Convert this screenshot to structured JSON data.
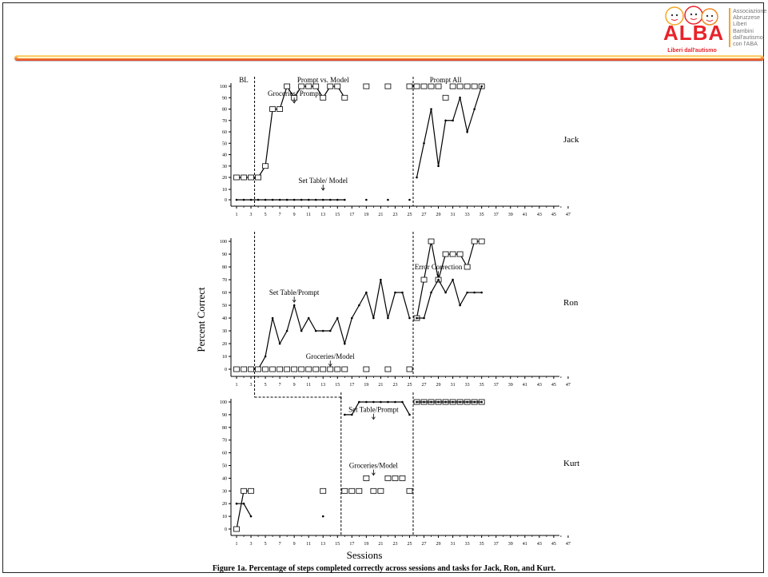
{
  "logo": {
    "brand": "ALBA",
    "tagline": "Liberi dall'autismo",
    "side_text": [
      "Associazione",
      "Abruzzese",
      "Liberi",
      "Bambini",
      "dall'autismo",
      "con l'ABA"
    ]
  },
  "caption": "Figure 1a. Percentage of steps completed correctly across sessions and tasks for Jack, Ron, and Kurt.",
  "colors": {
    "accent_orange": "#f6a13a",
    "accent_red": "#e23b2a",
    "data_ink": "#000000"
  },
  "chart_data": {
    "type": "line",
    "xlabel": "Sessions",
    "ylabel": "Percent Correct",
    "x_tick_labels": [
      1,
      3,
      5,
      7,
      9,
      11,
      13,
      15,
      17,
      19,
      21,
      23,
      25,
      27,
      29,
      31,
      33,
      35,
      37,
      39,
      41,
      43,
      45,
      47
    ],
    "xlim": [
      1,
      47
    ],
    "ylim": [
      0,
      100
    ],
    "panels": [
      {
        "name": "Jack",
        "y_ticks": [
          0,
          10,
          20,
          30,
          40,
          50,
          60,
          70,
          80,
          90,
          100
        ],
        "phase_labels": [
          {
            "label": "BL",
            "x": 2
          },
          {
            "label": "Prompt vs. Model",
            "x": 13
          },
          {
            "label": "Prompt All",
            "x": 30
          }
        ],
        "phase_lines_x": [
          3.5,
          25.5
        ],
        "annotations": [
          {
            "text": "Groceries/ Prompt",
            "x": 9,
            "y": 86,
            "arrow": true
          },
          {
            "text": "Set Table/ Model",
            "x": 13,
            "y": 3,
            "arrow": true
          }
        ],
        "series": [
          {
            "name": "Groceries",
            "marker": "square",
            "line": true,
            "points": [
              [
                1,
                20
              ],
              [
                2,
                20
              ],
              [
                3,
                20
              ],
              [
                4,
                20
              ],
              [
                5,
                30
              ],
              [
                6,
                80
              ],
              [
                7,
                80
              ],
              [
                8,
                100
              ],
              [
                9,
                90
              ],
              [
                10,
                100
              ],
              [
                11,
                100
              ],
              [
                12,
                100
              ],
              [
                13,
                90
              ],
              [
                14,
                100
              ],
              [
                15,
                100
              ],
              [
                16,
                90
              ]
            ]
          },
          {
            "name": "Groceries",
            "marker": "square",
            "line": false,
            "points": [
              [
                19,
                100
              ],
              [
                22,
                100
              ],
              [
                25,
                100
              ],
              [
                26,
                100
              ],
              [
                27,
                100
              ],
              [
                28,
                100
              ],
              [
                29,
                100
              ],
              [
                30,
                90
              ],
              [
                31,
                100
              ],
              [
                32,
                100
              ],
              [
                33,
                100
              ],
              [
                34,
                100
              ],
              [
                35,
                100
              ]
            ]
          },
          {
            "name": "Set Table",
            "marker": "dot",
            "line": true,
            "points": [
              [
                1,
                0
              ],
              [
                2,
                0
              ],
              [
                3,
                0
              ],
              [
                4,
                0
              ],
              [
                5,
                0
              ],
              [
                6,
                0
              ],
              [
                7,
                0
              ],
              [
                8,
                0
              ],
              [
                9,
                0
              ],
              [
                10,
                0
              ],
              [
                11,
                0
              ],
              [
                12,
                0
              ],
              [
                13,
                0
              ],
              [
                14,
                0
              ],
              [
                15,
                0
              ],
              [
                16,
                0
              ]
            ]
          },
          {
            "name": "Set Table",
            "marker": "dot",
            "line": false,
            "points": [
              [
                19,
                0
              ],
              [
                22,
                0
              ],
              [
                25,
                0
              ]
            ]
          },
          {
            "name": "Set Table",
            "marker": "dot",
            "line": true,
            "points": [
              [
                26,
                20
              ],
              [
                27,
                50
              ],
              [
                28,
                80
              ],
              [
                29,
                30
              ],
              [
                30,
                70
              ],
              [
                31,
                70
              ],
              [
                32,
                90
              ],
              [
                33,
                60
              ],
              [
                34,
                80
              ],
              [
                35,
                100
              ]
            ]
          }
        ]
      },
      {
        "name": "Ron",
        "y_ticks": [
          0,
          10,
          20,
          30,
          40,
          50,
          60,
          70,
          80,
          90,
          100
        ],
        "phase_lines_x": [
          3.5,
          25.5
        ],
        "annotations": [
          {
            "text": "Set Table/Prompt",
            "x": 9,
            "y": 53,
            "arrow": true
          },
          {
            "text": "Groceries/Model",
            "x": 14,
            "y": 3,
            "arrow": true
          },
          {
            "text": "Error Correction",
            "x": 29,
            "y": 73,
            "arrow": true
          }
        ],
        "series": [
          {
            "name": "Set Table",
            "marker": "dot",
            "line": true,
            "points": [
              [
                4,
                0
              ],
              [
                5,
                10
              ],
              [
                6,
                40
              ],
              [
                7,
                20
              ],
              [
                8,
                30
              ],
              [
                9,
                50
              ],
              [
                10,
                30
              ],
              [
                11,
                40
              ],
              [
                12,
                30
              ],
              [
                13,
                30
              ],
              [
                14,
                30
              ],
              [
                15,
                40
              ],
              [
                16,
                20
              ],
              [
                17,
                40
              ],
              [
                18,
                50
              ],
              [
                19,
                60
              ],
              [
                20,
                40
              ],
              [
                21,
                70
              ],
              [
                22,
                40
              ],
              [
                23,
                60
              ],
              [
                24,
                60
              ],
              [
                25,
                40
              ]
            ]
          },
          {
            "name": "Groceries",
            "marker": "square",
            "line": false,
            "points": [
              [
                1,
                0
              ],
              [
                2,
                0
              ],
              [
                3,
                0
              ],
              [
                4,
                0
              ],
              [
                5,
                0
              ],
              [
                6,
                0
              ],
              [
                7,
                0
              ],
              [
                8,
                0
              ],
              [
                9,
                0
              ],
              [
                10,
                0
              ],
              [
                11,
                0
              ],
              [
                12,
                0
              ],
              [
                13,
                0
              ],
              [
                14,
                0
              ],
              [
                15,
                0
              ],
              [
                16,
                0
              ],
              [
                19,
                0
              ],
              [
                22,
                0
              ],
              [
                25,
                0
              ]
            ]
          },
          {
            "name": "Groceries",
            "marker": "square",
            "line": true,
            "points": [
              [
                26,
                40
              ],
              [
                27,
                70
              ],
              [
                28,
                100
              ],
              [
                29,
                70
              ],
              [
                30,
                90
              ],
              [
                31,
                90
              ],
              [
                32,
                90
              ],
              [
                33,
                80
              ],
              [
                34,
                100
              ],
              [
                35,
                100
              ]
            ]
          },
          {
            "name": "Set Table",
            "marker": "dot",
            "line": true,
            "points": [
              [
                26,
                40
              ],
              [
                27,
                40
              ],
              [
                28,
                60
              ],
              [
                29,
                70
              ],
              [
                30,
                60
              ],
              [
                31,
                70
              ],
              [
                32,
                50
              ],
              [
                33,
                60
              ],
              [
                34,
                60
              ],
              [
                35,
                60
              ]
            ]
          }
        ]
      },
      {
        "name": "Kurt",
        "y_ticks": [
          0,
          10,
          20,
          30,
          40,
          50,
          60,
          70,
          80,
          90,
          100
        ],
        "phase_lines_x": [
          15.5,
          25.5
        ],
        "annotations": [
          {
            "text": "Set Table/Prompt",
            "x": 20,
            "y": 87,
            "arrow": true
          },
          {
            "text": "Groceries/Model",
            "x": 20,
            "y": 43,
            "arrow": true
          }
        ],
        "series": [
          {
            "name": "Groceries",
            "marker": "square",
            "line": true,
            "points": [
              [
                1,
                0
              ],
              [
                2,
                30
              ],
              [
                3,
                30
              ]
            ]
          },
          {
            "name": "Set Table",
            "marker": "dot",
            "line": true,
            "points": [
              [
                1,
                20
              ],
              [
                2,
                20
              ],
              [
                3,
                10
              ]
            ]
          },
          {
            "name": "Groceries",
            "marker": "square",
            "line": false,
            "points": [
              [
                13,
                30
              ]
            ]
          },
          {
            "name": "Set Table",
            "marker": "dot",
            "line": false,
            "points": [
              [
                13,
                10
              ]
            ]
          },
          {
            "name": "Groceries",
            "marker": "square",
            "line": false,
            "points": [
              [
                16,
                30
              ],
              [
                17,
                30
              ],
              [
                18,
                30
              ],
              [
                19,
                40
              ],
              [
                20,
                30
              ],
              [
                21,
                30
              ],
              [
                22,
                40
              ],
              [
                23,
                40
              ],
              [
                24,
                40
              ],
              [
                25,
                30
              ]
            ]
          },
          {
            "name": "Set Table",
            "marker": "dot",
            "line": true,
            "points": [
              [
                16,
                90
              ],
              [
                17,
                90
              ],
              [
                18,
                100
              ],
              [
                19,
                100
              ],
              [
                20,
                100
              ],
              [
                21,
                100
              ],
              [
                22,
                100
              ],
              [
                23,
                100
              ],
              [
                24,
                100
              ],
              [
                25,
                90
              ]
            ]
          },
          {
            "name": "Groceries",
            "marker": "square",
            "line": true,
            "points": [
              [
                26,
                100
              ],
              [
                27,
                100
              ],
              [
                28,
                100
              ],
              [
                29,
                100
              ],
              [
                30,
                100
              ],
              [
                31,
                100
              ],
              [
                32,
                100
              ],
              [
                33,
                100
              ],
              [
                34,
                100
              ],
              [
                35,
                100
              ]
            ]
          },
          {
            "name": "Set Table",
            "marker": "dot",
            "line": true,
            "points": [
              [
                26,
                100
              ],
              [
                27,
                100
              ],
              [
                28,
                100
              ],
              [
                29,
                100
              ],
              [
                30,
                100
              ],
              [
                31,
                100
              ],
              [
                32,
                100
              ],
              [
                33,
                100
              ],
              [
                34,
                100
              ],
              [
                35,
                100
              ]
            ]
          }
        ]
      }
    ]
  }
}
